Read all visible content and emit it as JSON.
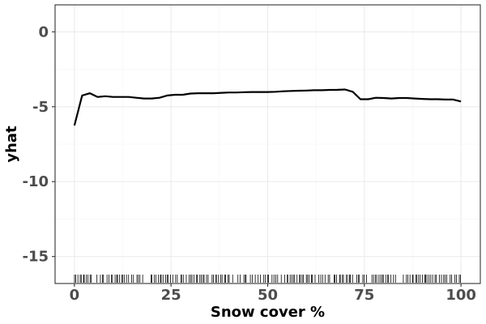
{
  "chart_data": {
    "type": "line",
    "title": "",
    "xlabel": "Snow cover %",
    "ylabel": "yhat",
    "xlim": [
      -5,
      105
    ],
    "ylim": [
      -16.8,
      1.8
    ],
    "x_ticks": [
      0,
      25,
      50,
      75,
      100
    ],
    "x_tick_labels": [
      "0",
      "25",
      "50",
      "75",
      "100"
    ],
    "y_ticks": [
      0,
      -5,
      -10,
      -15
    ],
    "y_tick_labels": [
      "0",
      "-5",
      "-10",
      "-15"
    ],
    "grid": true,
    "legend": "none",
    "series": [
      {
        "line_color": "#000000",
        "x": [
          0,
          2,
          4,
          6,
          8,
          10,
          12,
          14,
          16,
          18,
          20,
          22,
          24,
          26,
          28,
          30,
          32,
          34,
          36,
          38,
          40,
          42,
          44,
          46,
          48,
          50,
          52,
          54,
          56,
          58,
          60,
          62,
          64,
          66,
          68,
          70,
          72,
          74,
          76,
          78,
          80,
          82,
          84,
          86,
          88,
          90,
          92,
          94,
          96,
          98,
          100
        ],
        "y": [
          -6.25,
          -4.25,
          -4.1,
          -4.35,
          -4.3,
          -4.35,
          -4.35,
          -4.35,
          -4.4,
          -4.45,
          -4.45,
          -4.4,
          -4.25,
          -4.2,
          -4.2,
          -4.12,
          -4.1,
          -4.1,
          -4.1,
          -4.07,
          -4.05,
          -4.05,
          -4.03,
          -4.02,
          -4.02,
          -4.02,
          -4.0,
          -3.97,
          -3.95,
          -3.93,
          -3.92,
          -3.9,
          -3.9,
          -3.88,
          -3.87,
          -3.85,
          -4.0,
          -4.5,
          -4.5,
          -4.4,
          -4.42,
          -4.45,
          -4.42,
          -4.42,
          -4.45,
          -4.48,
          -4.5,
          -4.5,
          -4.52,
          -4.52,
          -4.65
        ]
      }
    ],
    "rug_color": "#000000"
  }
}
